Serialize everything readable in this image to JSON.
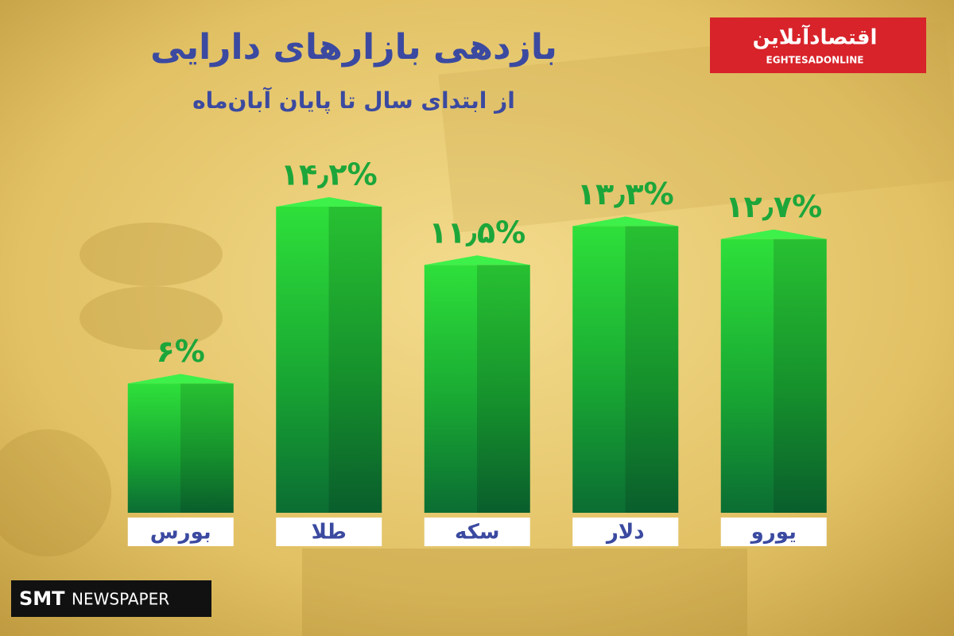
{
  "chart_data": {
    "type": "bar",
    "title": "بازدهی بازارهای دارایی",
    "subtitle": "از ابتدای سال تا پایان آبان‌ماه",
    "logo": {
      "name": "اقتصادآنلاین",
      "latin": "EGHTESADONLINE"
    },
    "watermark": {
      "brand": "SMT",
      "text": "NEWSPAPER"
    },
    "categories": [
      "بورس",
      "طلا",
      "سکه",
      "دلار",
      "یورو"
    ],
    "values": [
      6,
      14.2,
      11.5,
      13.3,
      12.7
    ],
    "value_labels": [
      "۶%",
      "۱۴٫۲%",
      "۱۱٫۵%",
      "۱۳٫۳%",
      "۱۲٫۷%"
    ],
    "color": "#1fbf2c"
  }
}
